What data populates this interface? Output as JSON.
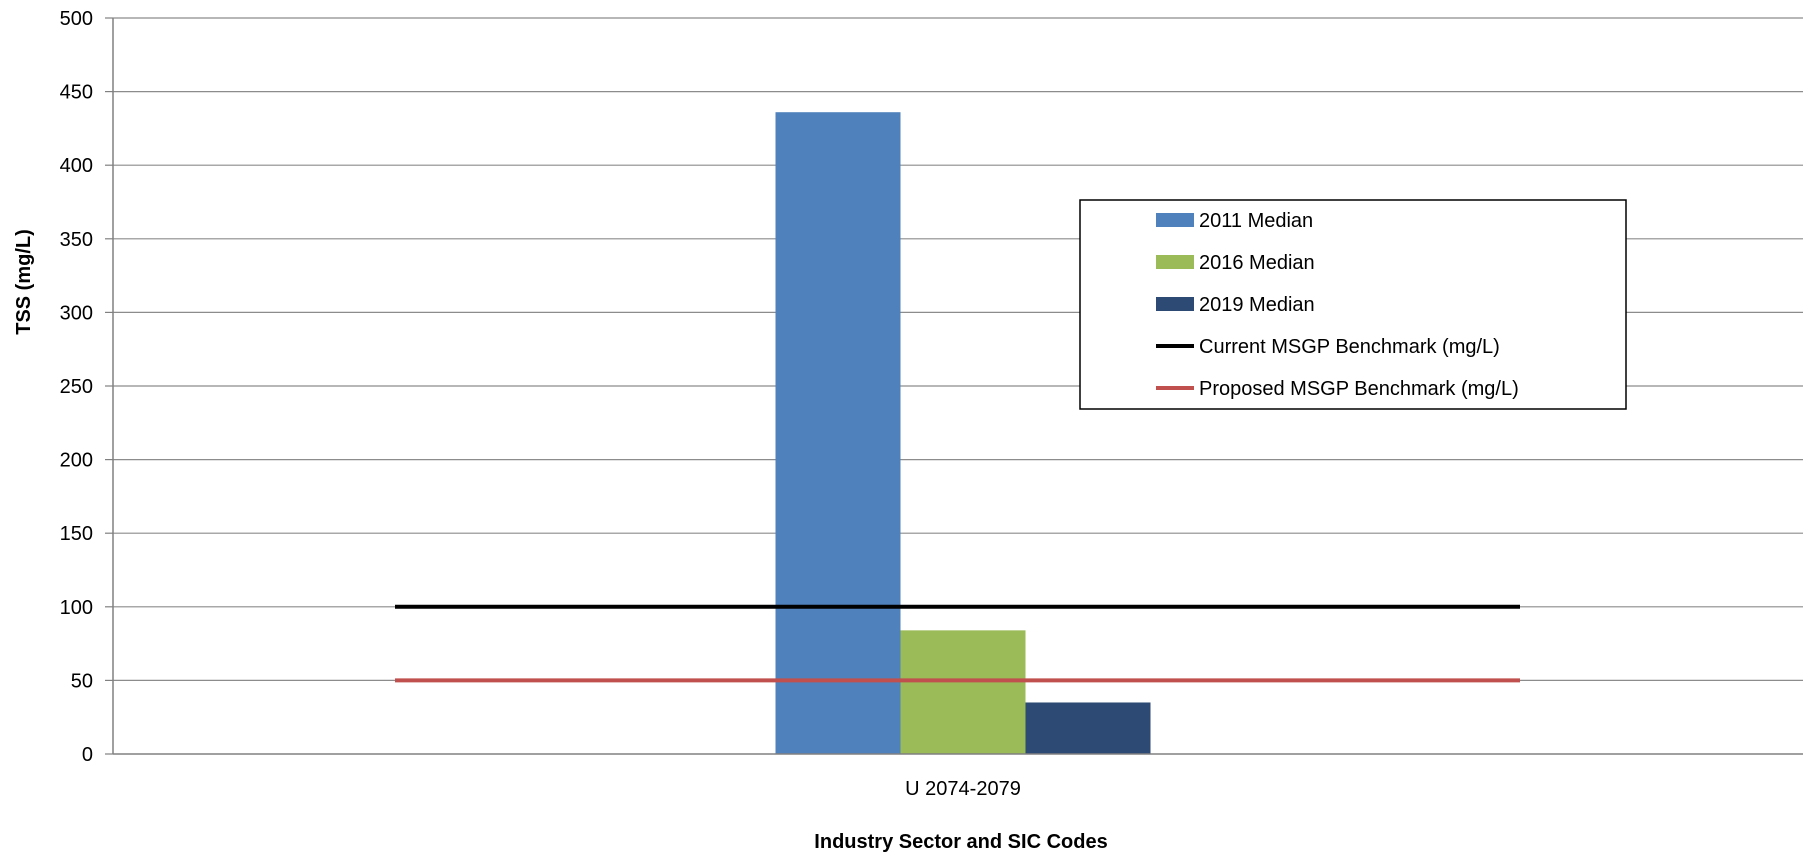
{
  "chart_data": {
    "type": "bar",
    "categories": [
      "U 2074-2079"
    ],
    "series": [
      {
        "name": "2011 Median",
        "kind": "bar",
        "color": "#4f81bd",
        "values": [
          436
        ]
      },
      {
        "name": "2016 Median",
        "kind": "bar",
        "color": "#9bbb59",
        "values": [
          84
        ]
      },
      {
        "name": "2019 Median",
        "kind": "bar",
        "color": "#2c4a74",
        "values": [
          35
        ]
      },
      {
        "name": "Current MSGP Benchmark (mg/L)",
        "kind": "line",
        "color": "#000000",
        "values": [
          100
        ]
      },
      {
        "name": "Proposed MSGP Benchmark (mg/L)",
        "kind": "line",
        "color": "#c0504d",
        "values": [
          50
        ]
      }
    ],
    "xlabel": "Industry Sector and SIC Codes",
    "ylabel": "TSS (mg/L)",
    "ylim": [
      0,
      500
    ],
    "yticks": [
      0,
      50,
      100,
      150,
      200,
      250,
      300,
      350,
      400,
      450,
      500
    ],
    "grid": true,
    "legend_position": "right"
  }
}
